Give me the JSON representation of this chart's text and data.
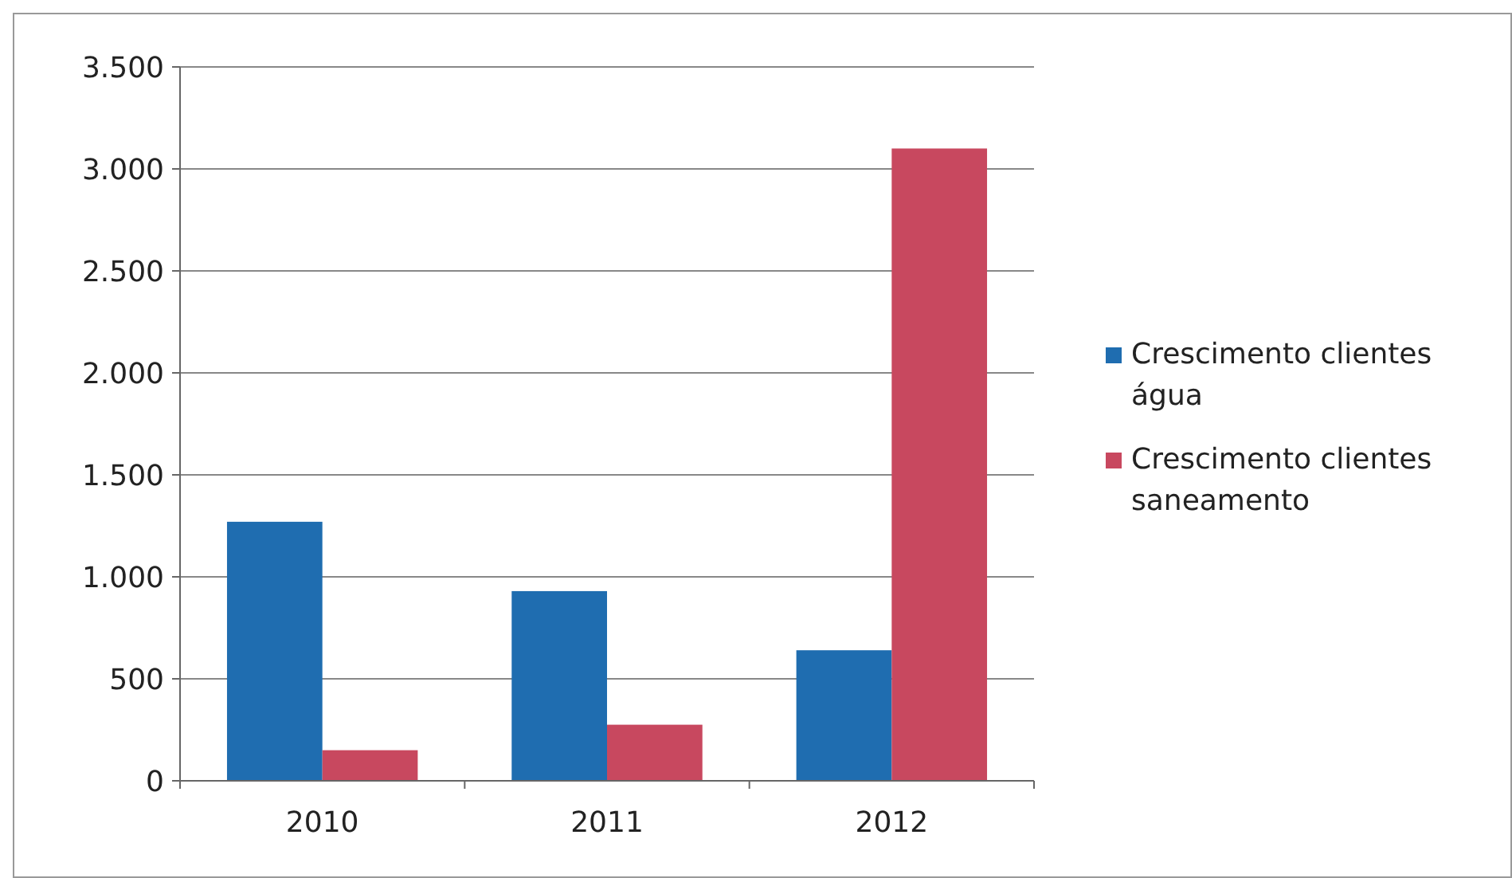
{
  "chart_data": {
    "type": "bar",
    "categories": [
      "2010",
      "2011",
      "2012"
    ],
    "series": [
      {
        "name": "Crescimento clientes água",
        "color": "#1f6db0",
        "values": [
          1270,
          930,
          640
        ]
      },
      {
        "name": "Crescimento clientes saneamento",
        "color": "#c8485f",
        "values": [
          150,
          275,
          3100
        ]
      }
    ],
    "ylim": [
      0,
      3500
    ],
    "yticks": [
      0,
      500,
      {
        "value": 1000,
        "label": "1.000"
      },
      {
        "value": 1500,
        "label": "1.500"
      },
      {
        "value": 2000,
        "label": "2.000"
      },
      {
        "value": 2500,
        "label": "2.500"
      },
      {
        "value": 3000,
        "label": "3.000"
      },
      {
        "value": 3500,
        "label": "3.500"
      }
    ],
    "grid": "y",
    "legend": "right"
  }
}
